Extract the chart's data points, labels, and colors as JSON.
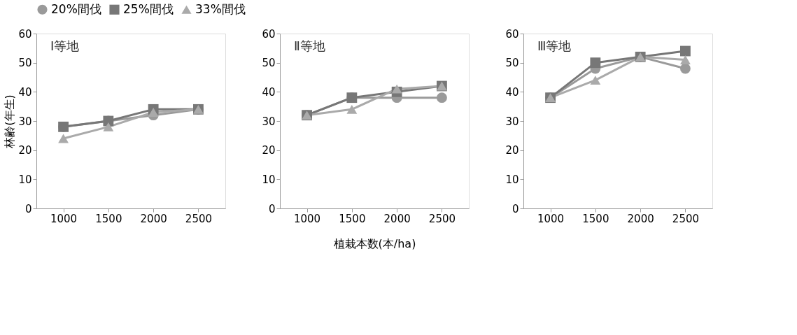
{
  "chart_data": [
    {
      "type": "line",
      "categories": [
        "1000",
        "1500",
        "2000",
        "2500"
      ],
      "ylabel": "林齢(年生)",
      "annotations": [
        "Ⅰ等地"
      ],
      "ylim": [
        0,
        60
      ],
      "yticks": [
        0,
        10,
        20,
        30,
        40,
        50,
        60
      ],
      "grid": false,
      "legend": "top",
      "line_style": "solid",
      "series": [
        {
          "name": "20%間伐",
          "color": "#9a9a9a",
          "marker": "circle",
          "values": [
            28,
            30,
            32,
            34
          ]
        },
        {
          "name": "25%間伐",
          "color": "#777777",
          "marker": "square",
          "values": [
            28,
            30,
            34,
            34
          ]
        },
        {
          "name": "33%間伐",
          "color": "#aaaaaa",
          "marker": "triangle",
          "values": [
            24,
            28,
            33,
            34
          ]
        }
      ]
    },
    {
      "type": "line",
      "categories": [
        "1000",
        "1500",
        "2000",
        "2500"
      ],
      "xlabel": "植栽本数(本/ha)",
      "annotations": [
        "Ⅱ等地"
      ],
      "ylim": [
        0,
        60
      ],
      "yticks": [
        0,
        10,
        20,
        30,
        40,
        50,
        60
      ],
      "grid": false,
      "line_style": "solid",
      "series": [
        {
          "name": "20%間伐",
          "color": "#9a9a9a",
          "marker": "circle",
          "values": [
            32,
            38,
            38,
            38
          ]
        },
        {
          "name": "25%間伐",
          "color": "#777777",
          "marker": "square",
          "values": [
            32,
            38,
            40,
            42
          ]
        },
        {
          "name": "33%間伐",
          "color": "#aaaaaa",
          "marker": "triangle",
          "values": [
            32,
            34,
            41,
            42
          ]
        }
      ]
    },
    {
      "type": "line",
      "categories": [
        "1000",
        "1500",
        "2000",
        "2500"
      ],
      "annotations": [
        "Ⅲ等地"
      ],
      "ylim": [
        0,
        60
      ],
      "yticks": [
        0,
        10,
        20,
        30,
        40,
        50,
        60
      ],
      "grid": false,
      "line_style": "solid",
      "series": [
        {
          "name": "20%間伐",
          "color": "#9a9a9a",
          "marker": "circle",
          "values": [
            38,
            48,
            52,
            48
          ]
        },
        {
          "name": "25%間伐",
          "color": "#777777",
          "marker": "square",
          "values": [
            38,
            50,
            52,
            54
          ]
        },
        {
          "name": "33%間伐",
          "color": "#aaaaaa",
          "marker": "triangle",
          "values": [
            38,
            44,
            52,
            51
          ]
        }
      ]
    }
  ]
}
